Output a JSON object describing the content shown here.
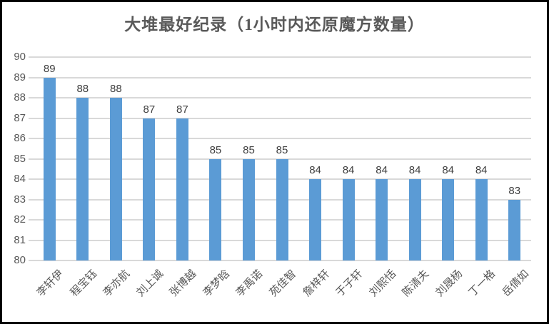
{
  "frame": {
    "border_color": "#000000",
    "background_color": "#FFFFFF"
  },
  "chart_data": {
    "type": "bar",
    "title": "大堆最好纪录（1小时内还原魔方数量）",
    "categories": [
      "李轩伊",
      "程宝钰",
      "李亦航",
      "刘上诚",
      "张博越",
      "李梦晗",
      "李禹诺",
      "苑佳智",
      "詹梓轩",
      "于子轩",
      "刘熙恬",
      "陈清夫",
      "刘晟杨",
      "丁一格",
      "岳倩如"
    ],
    "values": [
      89,
      88,
      88,
      87,
      87,
      85,
      85,
      85,
      84,
      84,
      84,
      84,
      84,
      84,
      83
    ],
    "data_labels": [
      89,
      88,
      88,
      87,
      87,
      85,
      85,
      85,
      84,
      84,
      84,
      84,
      84,
      84,
      83
    ],
    "xlabel": "",
    "ylabel": "",
    "ylim": [
      80,
      90
    ],
    "ytick_step": 1,
    "yticks": [
      80,
      81,
      82,
      83,
      84,
      85,
      86,
      87,
      88,
      89,
      90
    ],
    "grid": true,
    "legend_position": "none",
    "bar_color": "#5B9BD5",
    "gridline_color": "#D9D9D9",
    "title_color": "#595959",
    "value_label_color": "#404040",
    "axis_label_color": "#595959",
    "category_label_color": "#595959"
  }
}
